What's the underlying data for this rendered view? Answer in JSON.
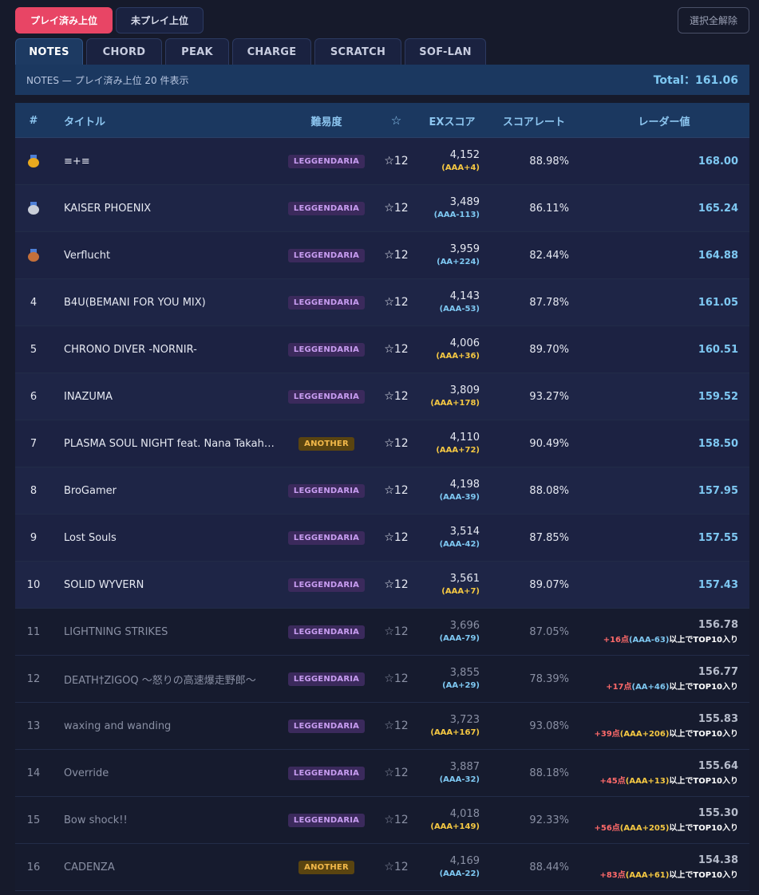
{
  "filters": {
    "played_top": "プレイ済み上位",
    "unplayed_top": "未プレイ上位",
    "clear_all": "選択全解除"
  },
  "tabs": [
    "NOTES",
    "CHORD",
    "PEAK",
    "CHARGE",
    "SCRATCH",
    "SOF-LAN"
  ],
  "active_tab": "NOTES",
  "info": {
    "summary": "NOTES — プレイ済み上位 20 件表示",
    "total": "Total：161.06"
  },
  "columns": {
    "rank": "#",
    "title": "タイトル",
    "difficulty": "難易度",
    "level": "☆",
    "ex": "EXスコア",
    "rate": "スコアレート",
    "radar": "レーダー値"
  },
  "colors": {
    "leggendaria": "#c79cf0",
    "another": "#f2b84a",
    "grade_aaa_plus": "#f5c842",
    "grade_minus": "#7ec8f2",
    "accent": "#e84565"
  },
  "rows": [
    {
      "rank": "",
      "medal": "gold",
      "title": "≡+≡",
      "diff": "LEGGENDARIA",
      "lv": "☆12",
      "ex": "4,152",
      "grade": "(AAA+4)",
      "grade_color": "plus",
      "rate": "88.98%",
      "radar": "168.00"
    },
    {
      "rank": "",
      "medal": "silver",
      "title": "KAISER PHOENIX",
      "diff": "LEGGENDARIA",
      "lv": "☆12",
      "ex": "3,489",
      "grade": "(AAA-113)",
      "grade_color": "minus",
      "rate": "86.11%",
      "radar": "165.24"
    },
    {
      "rank": "",
      "medal": "bronze",
      "title": "Verflucht",
      "diff": "LEGGENDARIA",
      "lv": "☆12",
      "ex": "3,959",
      "grade": "(AA+224)",
      "grade_color": "minus",
      "rate": "82.44%",
      "radar": "164.88"
    },
    {
      "rank": "4",
      "title": "B4U(BEMANI FOR YOU MIX)",
      "diff": "LEGGENDARIA",
      "lv": "☆12",
      "ex": "4,143",
      "grade": "(AAA-53)",
      "grade_color": "minus",
      "rate": "87.78%",
      "radar": "161.05"
    },
    {
      "rank": "5",
      "title": "CHRONO DIVER -NORNIR-",
      "diff": "LEGGENDARIA",
      "lv": "☆12",
      "ex": "4,006",
      "grade": "(AAA+36)",
      "grade_color": "plus",
      "rate": "89.70%",
      "radar": "160.51"
    },
    {
      "rank": "6",
      "title": "INAZUMA",
      "diff": "LEGGENDARIA",
      "lv": "☆12",
      "ex": "3,809",
      "grade": "(AAA+178)",
      "grade_color": "plus",
      "rate": "93.27%",
      "radar": "159.52"
    },
    {
      "rank": "7",
      "title": "PLASMA SOUL NIGHT feat. Nana Takah…",
      "diff": "ANOTHER",
      "lv": "☆12",
      "ex": "4,110",
      "grade": "(AAA+72)",
      "grade_color": "plus",
      "rate": "90.49%",
      "radar": "158.50"
    },
    {
      "rank": "8",
      "title": "BroGamer",
      "diff": "LEGGENDARIA",
      "lv": "☆12",
      "ex": "4,198",
      "grade": "(AAA-39)",
      "grade_color": "minus",
      "rate": "88.08%",
      "radar": "157.95"
    },
    {
      "rank": "9",
      "title": "Lost Souls",
      "diff": "LEGGENDARIA",
      "lv": "☆12",
      "ex": "3,514",
      "grade": "(AAA-42)",
      "grade_color": "minus",
      "rate": "87.85%",
      "radar": "157.55"
    },
    {
      "rank": "10",
      "title": "SOLID WYVERN",
      "diff": "LEGGENDARIA",
      "lv": "☆12",
      "ex": "3,561",
      "grade": "(AAA+7)",
      "grade_color": "plus",
      "rate": "89.07%",
      "radar": "157.43"
    },
    {
      "rank": "11",
      "title": "LIGHTNING STRIKES",
      "diff": "LEGGENDARIA",
      "lv": "☆12",
      "ex": "3,696",
      "grade": "(AAA-79)",
      "grade_color": "minus",
      "rate": "87.05%",
      "radar": "156.78",
      "need_pts": "+16点",
      "need_grade": "(AAA-63)",
      "need_grade_color": "minus",
      "need_suffix": "以上でTOP10入り"
    },
    {
      "rank": "12",
      "title": "DEATH†ZIGOQ 〜怒りの高速爆走野郎〜",
      "diff": "LEGGENDARIA",
      "lv": "☆12",
      "ex": "3,855",
      "grade": "(AA+29)",
      "grade_color": "minus",
      "rate": "78.39%",
      "radar": "156.77",
      "need_pts": "+17点",
      "need_grade": "(AA+46)",
      "need_grade_color": "minus",
      "need_suffix": "以上でTOP10入り"
    },
    {
      "rank": "13",
      "title": "waxing and wanding",
      "diff": "LEGGENDARIA",
      "lv": "☆12",
      "ex": "3,723",
      "grade": "(AAA+167)",
      "grade_color": "plus",
      "rate": "93.08%",
      "radar": "155.83",
      "need_pts": "+39点",
      "need_grade": "(AAA+206)",
      "need_grade_color": "plus",
      "need_suffix": "以上でTOP10入り"
    },
    {
      "rank": "14",
      "title": "Override",
      "diff": "LEGGENDARIA",
      "lv": "☆12",
      "ex": "3,887",
      "grade": "(AAA-32)",
      "grade_color": "minus",
      "rate": "88.18%",
      "radar": "155.64",
      "need_pts": "+45点",
      "need_grade": "(AAA+13)",
      "need_grade_color": "plus",
      "need_suffix": "以上でTOP10入り"
    },
    {
      "rank": "15",
      "title": "Bow shock!!",
      "diff": "LEGGENDARIA",
      "lv": "☆12",
      "ex": "4,018",
      "grade": "(AAA+149)",
      "grade_color": "plus",
      "rate": "92.33%",
      "radar": "155.30",
      "need_pts": "+56点",
      "need_grade": "(AAA+205)",
      "need_grade_color": "plus",
      "need_suffix": "以上でTOP10入り"
    },
    {
      "rank": "16",
      "title": "CADENZA",
      "diff": "ANOTHER",
      "lv": "☆12",
      "ex": "4,169",
      "grade": "(AAA-22)",
      "grade_color": "minus",
      "rate": "88.44%",
      "radar": "154.38",
      "need_pts": "+83点",
      "need_grade": "(AAA+61)",
      "need_grade_color": "plus",
      "need_suffix": "以上でTOP10入り"
    }
  ]
}
